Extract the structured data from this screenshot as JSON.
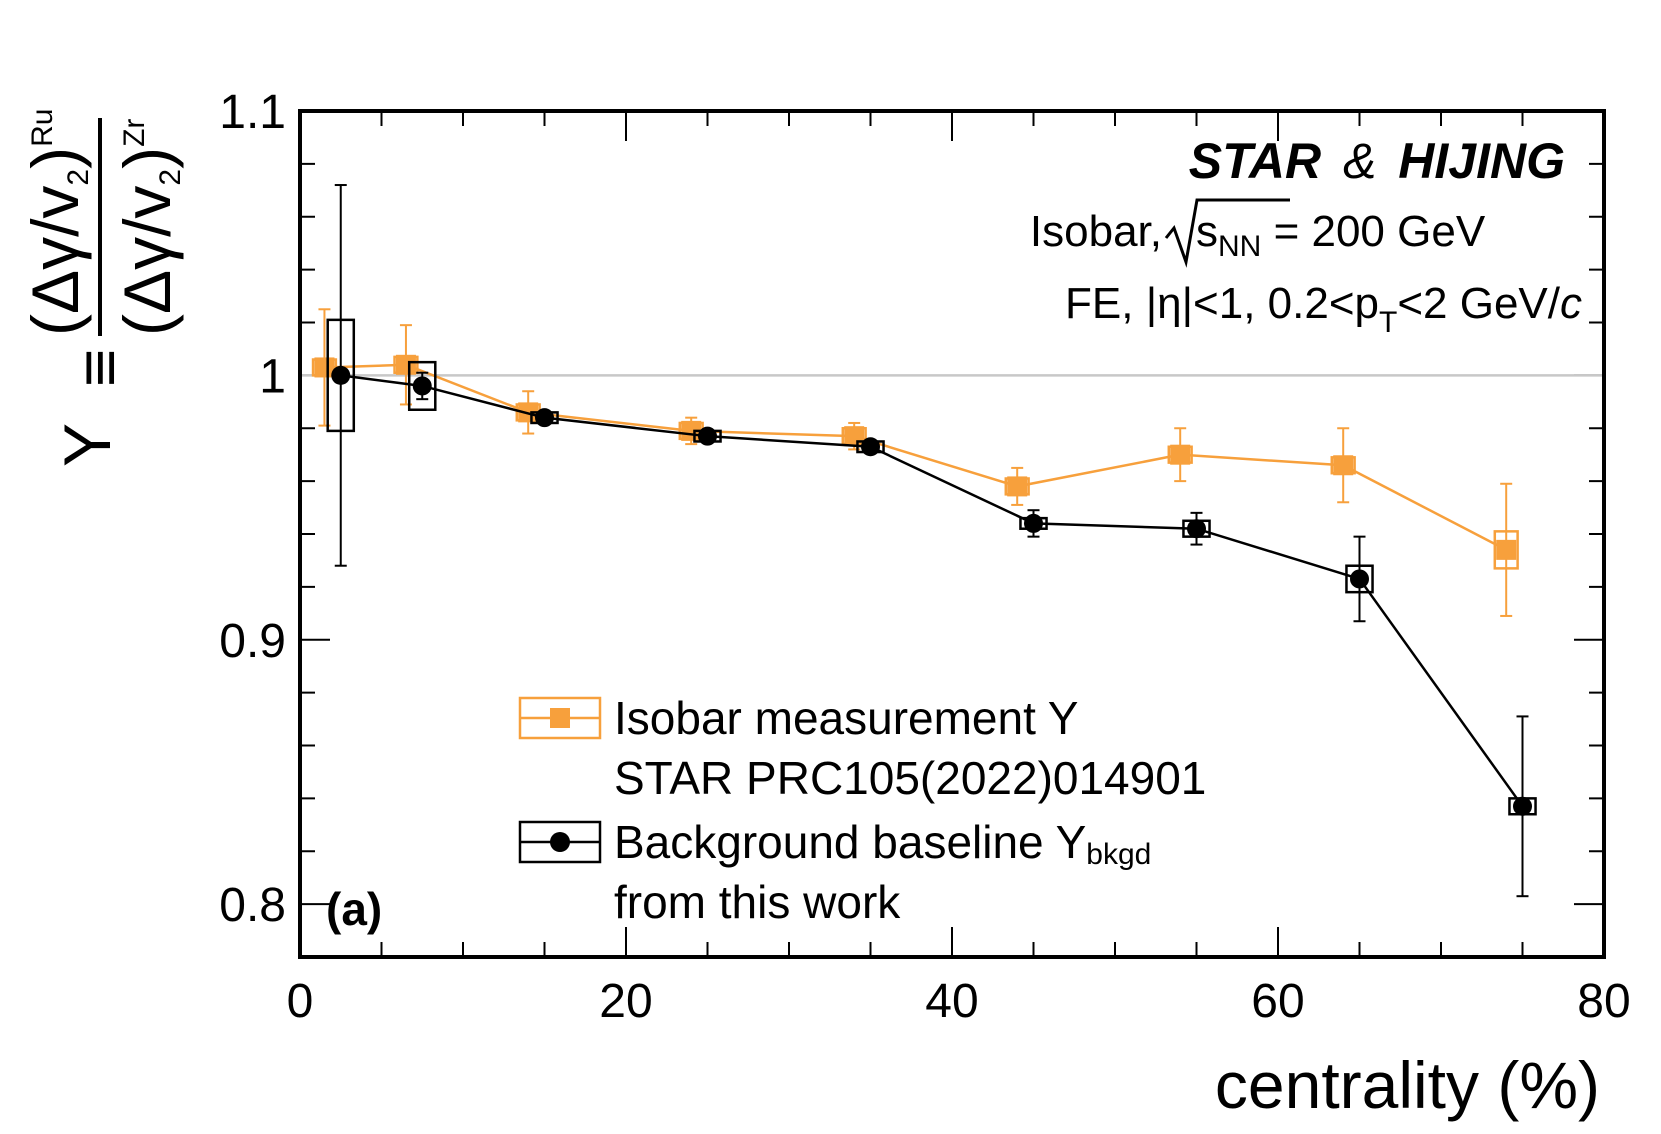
{
  "chart_data": {
    "type": "scatter",
    "title": "",
    "xlabel": "centrality (%)",
    "ylabel": {
      "symbol": "Y",
      "equiv": "≡",
      "numerator": "(Δγ/v",
      "numerator_sub": "2",
      "numerator_close": ")",
      "numerator_sup": "Ru",
      "denominator": "(Δγ/v",
      "denominator_sub": "2",
      "denominator_close": ")",
      "denominator_sup": "Zr"
    },
    "xlim": [
      0,
      80
    ],
    "ylim": [
      0.78,
      1.1
    ],
    "x_ticks": [
      0,
      20,
      40,
      60,
      80
    ],
    "x_tick_labels": [
      "0",
      "20",
      "40",
      "60",
      "80"
    ],
    "y_ticks": [
      0.8,
      0.9,
      1,
      1.1
    ],
    "y_tick_labels": [
      "0.8",
      "0.9",
      "1",
      "1.1"
    ],
    "reference_line": 1.0,
    "annotations": {
      "experiment": "STAR",
      "amp": "&",
      "model": "HIJING",
      "system_prefix": "Isobar, ",
      "sqrt_s": "s",
      "sqrt_s_sub": "NN",
      "energy": " = 200 GeV",
      "cuts_prefix": "FE, |η|<1, 0.2<p",
      "cuts_sub": "T",
      "cuts_suffix": "<2 GeV/",
      "cuts_c": "c",
      "panel": "(a)"
    },
    "series": [
      {
        "name": "Isobar measurement Y",
        "name_line2": "STAR PRC105(2022)014901",
        "color": "#f7a03c",
        "marker": "square",
        "x": [
          1.5,
          6.5,
          14,
          24,
          34,
          44,
          54,
          64,
          74
        ],
        "y": [
          1.003,
          1.004,
          0.986,
          0.979,
          0.977,
          0.958,
          0.97,
          0.966,
          0.934
        ],
        "yerr": [
          0.022,
          0.015,
          0.008,
          0.005,
          0.005,
          0.007,
          0.01,
          0.014,
          0.025
        ],
        "sys": [
          0.003,
          0.003,
          0.003,
          0.003,
          0.003,
          0.003,
          0.003,
          0.003,
          0.007
        ],
        "box_half_width": 0.7
      },
      {
        "name": "Background baseline Y",
        "name_sub": "bkgd",
        "name_line2": "from this work",
        "color": "#000000",
        "marker": "circle",
        "x": [
          2.5,
          7.5,
          15,
          25,
          35,
          45,
          55,
          65,
          75
        ],
        "y": [
          1.0,
          0.996,
          0.984,
          0.977,
          0.973,
          0.944,
          0.942,
          0.923,
          0.837
        ],
        "yerr": [
          0.072,
          0.005,
          0.002,
          0.002,
          0.002,
          0.005,
          0.006,
          0.016,
          0.034
        ],
        "sys": [
          0.021,
          0.009,
          0.002,
          0.002,
          0.002,
          0.002,
          0.003,
          0.005,
          0.003
        ],
        "box_half_width": 0.8
      }
    ]
  }
}
